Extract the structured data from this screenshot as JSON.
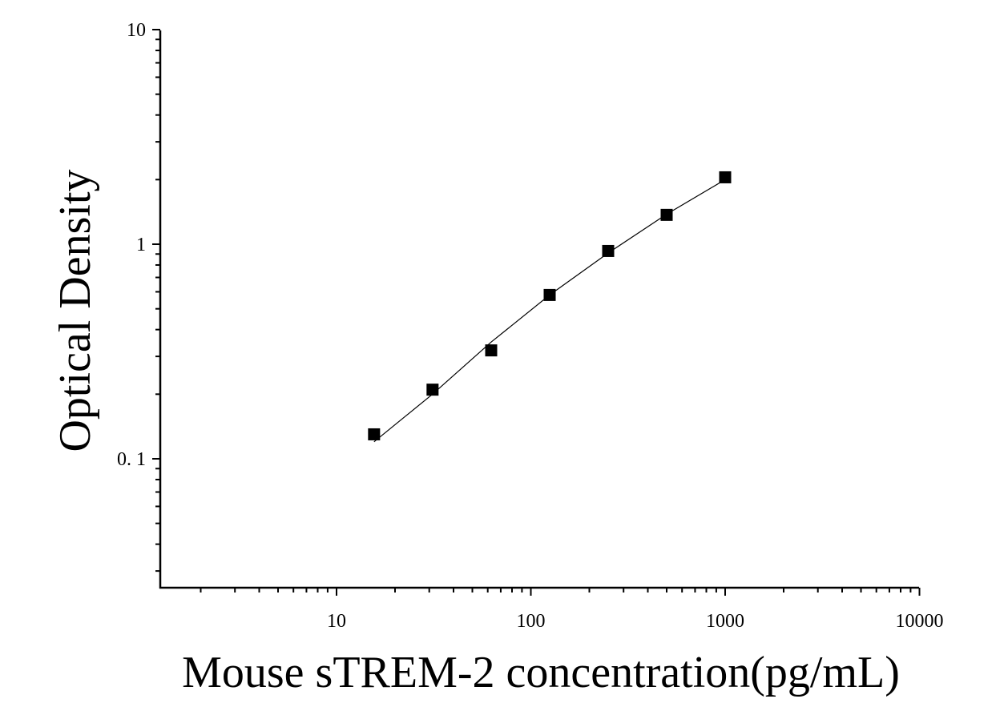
{
  "chart_data": {
    "type": "scatter",
    "xlabel": "Mouse sTREM-2 concentration(pg/mL)",
    "ylabel": "Optical Density",
    "xscale": "log",
    "yscale": "log",
    "xlim": [
      1.1,
      10000
    ],
    "ylim": [
      0.027,
      10
    ],
    "x_tick_labels": [
      "10",
      "100",
      "1000",
      "10000"
    ],
    "y_tick_labels": [
      "0. 1",
      "1",
      "10"
    ],
    "grid": false,
    "series": [
      {
        "marker": "square",
        "color": "#000000",
        "points": [
          {
            "x": 15.6,
            "y": 0.13
          },
          {
            "x": 31.2,
            "y": 0.21
          },
          {
            "x": 62.5,
            "y": 0.32
          },
          {
            "x": 125,
            "y": 0.58
          },
          {
            "x": 250,
            "y": 0.93
          },
          {
            "x": 500,
            "y": 1.37
          },
          {
            "x": 1000,
            "y": 2.05
          }
        ]
      }
    ],
    "fit_curve": {
      "color": "#000000",
      "points": [
        {
          "x": 15.6,
          "y": 0.12
        },
        {
          "x": 31.2,
          "y": 0.2
        },
        {
          "x": 62.5,
          "y": 0.35
        },
        {
          "x": 125,
          "y": 0.58
        },
        {
          "x": 250,
          "y": 0.91
        },
        {
          "x": 500,
          "y": 1.38
        },
        {
          "x": 1000,
          "y": 2.0
        }
      ]
    }
  }
}
